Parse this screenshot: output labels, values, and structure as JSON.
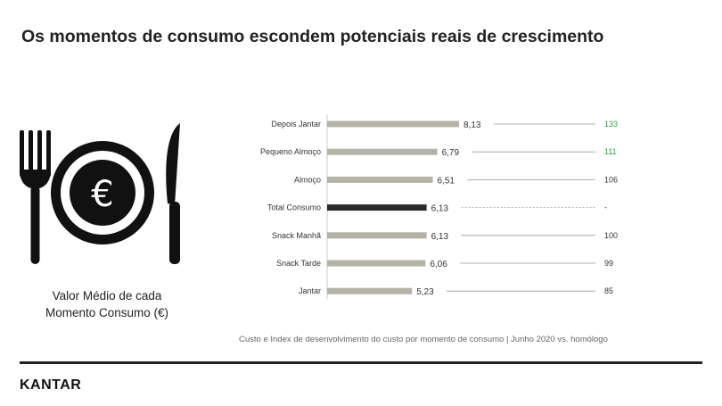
{
  "title": "Os momentos de consumo escondem potenciais reais de crescimento",
  "caption_line1": "Valor Médio de cada",
  "caption_line2": "Momento Consumo (€)",
  "icon": {
    "name": "fork-plate-knife-icon",
    "symbol": "€"
  },
  "source": "Custo e  Index de desenvolvimento do custo por momento de consumo | Junho 2020 vs. homólogo",
  "logo": "KANTAR",
  "colors": {
    "bar": "#b5b3a8",
    "highlight_bar": "#2b2b2b",
    "index_positive": "#3a9a45",
    "index_neutral": "#333333",
    "axis": "#cccccc"
  },
  "chart_data": {
    "type": "bar",
    "orientation": "horizontal",
    "categories": [
      "Depois Jantar",
      "Pequeno Almoço",
      "Almoço",
      "Total Consumo",
      "Snack Manhã",
      "Snack Tarde",
      "Jantar"
    ],
    "values": [
      8.13,
      6.79,
      6.51,
      6.13,
      6.13,
      6.06,
      5.23
    ],
    "value_labels": [
      "8,13",
      "6,79",
      "6,51",
      "6,13",
      "6,13",
      "6,06",
      "5,23"
    ],
    "highlight": "Total Consumo",
    "index_values": [
      "133",
      "111",
      "106",
      "-",
      "100",
      "99",
      "85"
    ],
    "index_colors": [
      "#3a9a45",
      "#3a9a45",
      "#333333",
      "#333333",
      "#333333",
      "#333333",
      "#333333"
    ],
    "xlim": [
      0,
      8.13
    ]
  }
}
